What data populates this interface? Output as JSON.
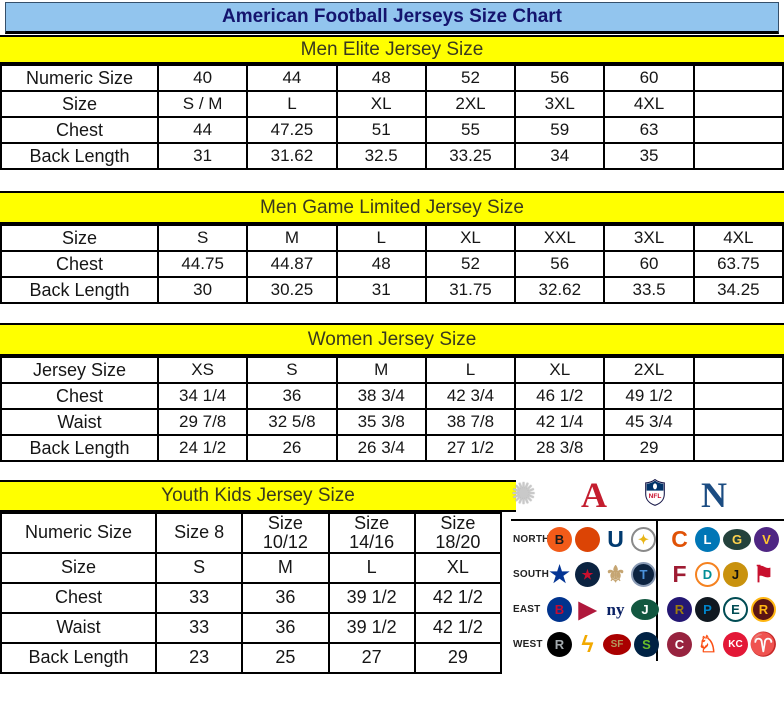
{
  "title": "American Football Jerseys Size Chart",
  "colors": {
    "title_bar_bg": "#92C5EE",
    "title_text": "#14146E",
    "band_bg": "#FFFF00",
    "band_text": "#39391F",
    "afc_red": "#C41E2F",
    "nfc_blue": "#1B4C82",
    "shield_blue": "#013369"
  },
  "tables": [
    {
      "title": "Men Elite Jersey Size",
      "rows": [
        {
          "label": "Numeric Size",
          "cells": [
            "40",
            "44",
            "48",
            "52",
            "56",
            "60",
            ""
          ]
        },
        {
          "label": "Size",
          "cells": [
            "S / M",
            "L",
            "XL",
            "2XL",
            "3XL",
            "4XL",
            ""
          ]
        },
        {
          "label": "Chest",
          "cells": [
            "44",
            "47.25",
            "51",
            "55",
            "59",
            "63",
            ""
          ]
        },
        {
          "label": "Back Length",
          "cells": [
            "31",
            "31.62",
            "32.5",
            "33.25",
            "34",
            "35",
            ""
          ]
        }
      ]
    },
    {
      "title": "Men Game Limited Jersey Size",
      "rows": [
        {
          "label": "Size",
          "cells": [
            "S",
            "M",
            "L",
            "XL",
            "XXL",
            "3XL",
            "4XL"
          ]
        },
        {
          "label": "Chest",
          "cells": [
            "44.75",
            "44.87",
            "48",
            "52",
            "56",
            "60",
            "63.75"
          ]
        },
        {
          "label": "Back Length",
          "cells": [
            "30",
            "30.25",
            "31",
            "31.75",
            "32.62",
            "33.5",
            "34.25"
          ]
        }
      ]
    },
    {
      "title": "Women Jersey Size",
      "rows": [
        {
          "label": "Jersey Size",
          "cells": [
            "XS",
            "S",
            "M",
            "L",
            "XL",
            "2XL",
            ""
          ]
        },
        {
          "label": "Chest",
          "cells": [
            "34 1/4",
            "36",
            "38 3/4",
            "42 3/4",
            "46 1/2",
            "49 1/2",
            ""
          ]
        },
        {
          "label": "Waist",
          "cells": [
            "29 7/8",
            "32 5/8",
            "35 3/8",
            "38 7/8",
            "42 1/4",
            "45 3/4",
            ""
          ]
        },
        {
          "label": "Back Length",
          "cells": [
            "24 1/2",
            "26",
            "26 3/4",
            "27 1/2",
            "28 3/8",
            "29",
            ""
          ]
        }
      ]
    },
    {
      "title": "Youth Kids Jersey Size",
      "rows": [
        {
          "label": "Numeric Size",
          "cells": [
            "Size 8",
            "Size 10/12",
            "Size 14/16",
            "Size 18/20"
          ]
        },
        {
          "label": "Size",
          "cells": [
            "S",
            "M",
            "L",
            "XL"
          ]
        },
        {
          "label": "Chest",
          "cells": [
            "33",
            "36",
            "39 1/2",
            "42 1/2"
          ]
        },
        {
          "label": "Waist",
          "cells": [
            "33",
            "36",
            "39 1/2",
            "42 1/2"
          ]
        },
        {
          "label": "Back Length",
          "cells": [
            "23",
            "25",
            "27",
            "29"
          ]
        }
      ]
    }
  ],
  "logo_panel": {
    "header": {
      "starburst_glyph": "✺",
      "afc_label": "A",
      "nfl_label": "NFL",
      "nfc_label": "N"
    },
    "divisions": [
      {
        "label": "NORTH",
        "afc": [
          {
            "team": "bengals",
            "glyph": "B",
            "bg": "#F25B19",
            "fg": "#1a1a1a"
          },
          {
            "team": "browns",
            "glyph": "",
            "bg": "#DC4405",
            "fg": "#ffffff"
          },
          {
            "team": "colts",
            "glyph": "U",
            "fg": "#013A6F"
          },
          {
            "team": "steelers",
            "glyph": "✦",
            "bg": "#ffffff",
            "fg": "#E8B517",
            "border": "#8a8a8a"
          }
        ],
        "nfc": [
          {
            "team": "bears",
            "glyph": "C",
            "fg": "#E05206"
          },
          {
            "team": "lions",
            "glyph": "L",
            "bg": "#0076B6",
            "fg": "#ffffff"
          },
          {
            "team": "packers",
            "glyph": "G",
            "bg": "#24423C",
            "fg": "#FFD24D",
            "shape": "oval"
          },
          {
            "team": "vikings",
            "glyph": "V",
            "bg": "#4F2683",
            "fg": "#FFC62F"
          }
        ]
      },
      {
        "label": "SOUTH",
        "afc": [
          {
            "team": "cowboys",
            "glyph": "★",
            "fg": "#043594"
          },
          {
            "team": "texans",
            "glyph": "★",
            "bg": "#0B2341",
            "fg": "#C8102E"
          },
          {
            "team": "saints",
            "glyph": "⚜",
            "fg": "#C5A572"
          },
          {
            "team": "titans",
            "glyph": "T",
            "bg": "#0C2340",
            "fg": "#4B92DB",
            "border": "#8a9bb5"
          }
        ],
        "nfc": [
          {
            "team": "falcons",
            "glyph": "F",
            "fg": "#9E1B32"
          },
          {
            "team": "dolphins",
            "glyph": "D",
            "bg": "#ffffff",
            "fg": "#008E97",
            "border": "#F58220"
          },
          {
            "team": "jaguars",
            "glyph": "J",
            "bg": "#C9920E",
            "fg": "#111111"
          },
          {
            "team": "buccaneers",
            "glyph": "⚑",
            "fg": "#C8102E"
          }
        ]
      },
      {
        "label": "EAST",
        "afc": [
          {
            "team": "bills",
            "glyph": "B",
            "bg": "#00338D",
            "fg": "#C60C30"
          },
          {
            "team": "patriots",
            "glyph": "▶",
            "fg": "#B0183C"
          },
          {
            "team": "giants",
            "glyph": "ny",
            "fg": "#0B2265"
          },
          {
            "team": "jets",
            "glyph": "J",
            "bg": "#125740",
            "fg": "#ffffff",
            "shape": "oval"
          }
        ],
        "nfc": [
          {
            "team": "ravens",
            "glyph": "R",
            "bg": "#241773",
            "fg": "#9E7C0C"
          },
          {
            "team": "panthers",
            "glyph": "P",
            "bg": "#101820",
            "fg": "#0085CA"
          },
          {
            "team": "eagles",
            "glyph": "E",
            "bg": "#ffffff",
            "fg": "#004C54",
            "border": "#004C54"
          },
          {
            "team": "redskins",
            "glyph": "R",
            "bg": "#5A1414",
            "fg": "#FFB612",
            "border": "#FFB612"
          }
        ]
      },
      {
        "label": "WEST",
        "afc": [
          {
            "team": "raiders",
            "glyph": "R",
            "bg": "#000000",
            "fg": "#A5ACAF"
          },
          {
            "team": "chargers",
            "glyph": "ϟ",
            "fg": "#F2A900"
          },
          {
            "team": "49ers",
            "glyph": "SF",
            "bg": "#AA0000",
            "fg": "#B3995D",
            "shape": "oval"
          },
          {
            "team": "seahawks",
            "glyph": "S",
            "bg": "#002244",
            "fg": "#69BE28"
          }
        ],
        "nfc": [
          {
            "team": "cardinals",
            "glyph": "C",
            "bg": "#97233F",
            "fg": "#ffffff"
          },
          {
            "team": "broncos",
            "glyph": "♘",
            "fg": "#FB4F14"
          },
          {
            "team": "chiefs",
            "glyph": "KC",
            "bg": "#E31837",
            "fg": "#ffffff"
          },
          {
            "team": "rams",
            "glyph": "♈",
            "fg": "#043594"
          }
        ]
      }
    ]
  }
}
